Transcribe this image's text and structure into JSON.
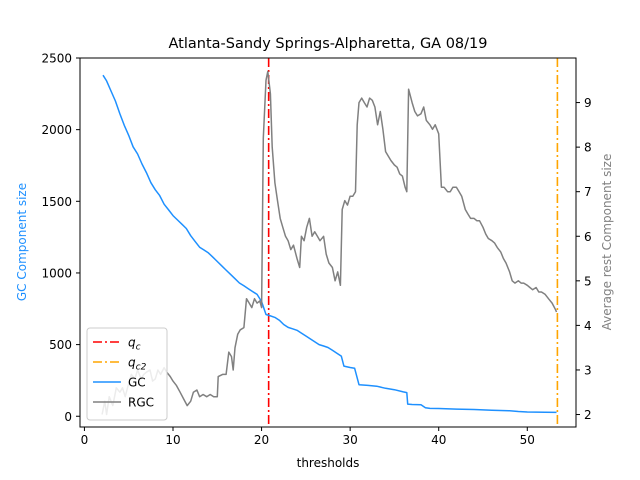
{
  "chart_data": {
    "type": "line",
    "title": "Atlanta-Sandy Springs-Alpharetta, GA 08/19",
    "xlabel": "thresholds",
    "ylabel_left": "GC Component size",
    "ylabel_right": "Average rest Component size",
    "xlim": [
      -0.5,
      55.5
    ],
    "ylim_left": [
      -75,
      2500
    ],
    "ylim_right": [
      1.72,
      10.0
    ],
    "x_ticks": [
      0,
      10,
      20,
      30,
      40,
      50
    ],
    "y_ticks_left": [
      0,
      500,
      1000,
      1500,
      2000,
      2500
    ],
    "y_ticks_right": [
      2,
      3,
      4,
      5,
      6,
      7,
      8,
      9
    ],
    "legend_position": "lower left",
    "colors": {
      "gc": "#1e90ff",
      "rgc": "#808080",
      "qc": "#ff0000",
      "qc2": "#ffa500",
      "left_label": "#1e90ff",
      "right_label": "#808080"
    },
    "vlines": [
      {
        "name": "q_c",
        "x": 20.8,
        "color": "#ff0000"
      },
      {
        "name": "q_c2",
        "x": 53.4,
        "color": "#ffa500"
      }
    ],
    "legend": [
      {
        "key": "qc",
        "label": "q",
        "sub": "c",
        "style": "dashdot",
        "color": "#ff0000"
      },
      {
        "key": "qc2",
        "label": "q",
        "sub": "c2",
        "style": "dashdot",
        "color": "#ffa500"
      },
      {
        "key": "gc",
        "label": "GC",
        "style": "solid",
        "color": "#1e90ff"
      },
      {
        "key": "rgc",
        "label": "RGC",
        "style": "solid",
        "color": "#808080"
      }
    ],
    "series": [
      {
        "name": "GC",
        "axis": "left",
        "points": [
          [
            2.1,
            2380
          ],
          [
            2.5,
            2340
          ],
          [
            3.0,
            2270
          ],
          [
            3.5,
            2200
          ],
          [
            4.0,
            2110
          ],
          [
            4.5,
            2030
          ],
          [
            5.0,
            1960
          ],
          [
            5.5,
            1880
          ],
          [
            6.0,
            1830
          ],
          [
            6.5,
            1760
          ],
          [
            7.0,
            1700
          ],
          [
            7.5,
            1630
          ],
          [
            8.0,
            1580
          ],
          [
            8.5,
            1540
          ],
          [
            9.0,
            1480
          ],
          [
            9.5,
            1440
          ],
          [
            10.0,
            1400
          ],
          [
            10.5,
            1370
          ],
          [
            11.0,
            1340
          ],
          [
            11.5,
            1310
          ],
          [
            12.0,
            1260
          ],
          [
            12.5,
            1220
          ],
          [
            13.0,
            1180
          ],
          [
            13.5,
            1160
          ],
          [
            14.0,
            1140
          ],
          [
            14.5,
            1110
          ],
          [
            15.0,
            1080
          ],
          [
            15.5,
            1050
          ],
          [
            16.0,
            1020
          ],
          [
            16.5,
            990
          ],
          [
            17.0,
            960
          ],
          [
            17.5,
            930
          ],
          [
            18.0,
            910
          ],
          [
            18.5,
            890
          ],
          [
            19.0,
            870
          ],
          [
            19.5,
            850
          ],
          [
            20.0,
            800
          ],
          [
            20.5,
            710
          ],
          [
            21.0,
            700
          ],
          [
            21.5,
            690
          ],
          [
            22.0,
            670
          ],
          [
            22.5,
            640
          ],
          [
            23.0,
            620
          ],
          [
            23.5,
            610
          ],
          [
            24.0,
            600
          ],
          [
            24.5,
            580
          ],
          [
            25.0,
            560
          ],
          [
            25.5,
            540
          ],
          [
            26.0,
            520
          ],
          [
            26.5,
            500
          ],
          [
            27.0,
            490
          ],
          [
            27.5,
            480
          ],
          [
            28.0,
            460
          ],
          [
            28.5,
            440
          ],
          [
            29.0,
            420
          ],
          [
            29.3,
            350
          ],
          [
            30.0,
            340
          ],
          [
            30.5,
            335
          ],
          [
            31.0,
            220
          ],
          [
            32.0,
            215
          ],
          [
            33.0,
            210
          ],
          [
            34.0,
            195
          ],
          [
            35.0,
            185
          ],
          [
            36.0,
            170
          ],
          [
            36.4,
            165
          ],
          [
            36.5,
            85
          ],
          [
            37.0,
            82
          ],
          [
            38.0,
            80
          ],
          [
            38.5,
            60
          ],
          [
            39.0,
            55
          ],
          [
            40.0,
            54
          ],
          [
            42.0,
            50
          ],
          [
            44.0,
            47
          ],
          [
            46.0,
            42
          ],
          [
            48.0,
            38
          ],
          [
            49.0,
            33
          ],
          [
            50.0,
            30
          ],
          [
            52.0,
            28
          ],
          [
            53.3,
            27
          ]
        ]
      },
      {
        "name": "RGC",
        "axis": "right",
        "points": [
          [
            2.0,
            2.0
          ],
          [
            2.3,
            2.3
          ],
          [
            2.5,
            2.0
          ],
          [
            2.8,
            2.4
          ],
          [
            3.2,
            2.2
          ],
          [
            3.6,
            2.6
          ],
          [
            4.0,
            2.5
          ],
          [
            4.3,
            2.6
          ],
          [
            4.6,
            2.4
          ],
          [
            5.0,
            2.7
          ],
          [
            5.3,
            2.9
          ],
          [
            5.7,
            2.8
          ],
          [
            6.0,
            3.0
          ],
          [
            6.4,
            2.8
          ],
          [
            6.7,
            2.9
          ],
          [
            7.0,
            2.95
          ],
          [
            7.4,
            3.0
          ],
          [
            7.7,
            2.75
          ],
          [
            8.0,
            2.8
          ],
          [
            8.3,
            3.0
          ],
          [
            8.6,
            2.9
          ],
          [
            9.0,
            3.05
          ],
          [
            9.3,
            2.95
          ],
          [
            9.7,
            2.85
          ],
          [
            10.0,
            2.75
          ],
          [
            10.4,
            2.65
          ],
          [
            10.8,
            2.5
          ],
          [
            11.2,
            2.35
          ],
          [
            11.6,
            2.2
          ],
          [
            12.0,
            2.3
          ],
          [
            12.3,
            2.5
          ],
          [
            12.7,
            2.55
          ],
          [
            13.0,
            2.4
          ],
          [
            13.4,
            2.45
          ],
          [
            13.8,
            2.4
          ],
          [
            14.2,
            2.45
          ],
          [
            14.6,
            2.4
          ],
          [
            15.0,
            2.4
          ],
          [
            15.1,
            2.85
          ],
          [
            15.6,
            2.9
          ],
          [
            16.0,
            2.9
          ],
          [
            16.3,
            3.4
          ],
          [
            16.6,
            3.3
          ],
          [
            16.8,
            3.0
          ],
          [
            17.0,
            3.5
          ],
          [
            17.3,
            3.8
          ],
          [
            17.6,
            3.9
          ],
          [
            18.0,
            3.95
          ],
          [
            18.3,
            4.6
          ],
          [
            18.6,
            4.5
          ],
          [
            18.9,
            4.4
          ],
          [
            19.2,
            4.6
          ],
          [
            19.5,
            4.5
          ],
          [
            19.8,
            4.55
          ],
          [
            20.0,
            4.4
          ],
          [
            20.2,
            8.2
          ],
          [
            20.5,
            9.5
          ],
          [
            20.7,
            9.7
          ],
          [
            21.0,
            9.2
          ],
          [
            21.2,
            8.0
          ],
          [
            21.5,
            7.2
          ],
          [
            21.8,
            6.8
          ],
          [
            22.1,
            6.4
          ],
          [
            22.4,
            6.2
          ],
          [
            22.7,
            6.0
          ],
          [
            23.0,
            5.9
          ],
          [
            23.3,
            5.7
          ],
          [
            23.6,
            5.8
          ],
          [
            24.0,
            5.5
          ],
          [
            24.3,
            5.3
          ],
          [
            24.5,
            6.0
          ],
          [
            24.8,
            5.9
          ],
          [
            25.1,
            6.2
          ],
          [
            25.4,
            6.4
          ],
          [
            25.7,
            6.0
          ],
          [
            26.0,
            6.1
          ],
          [
            26.3,
            6.0
          ],
          [
            26.6,
            5.9
          ],
          [
            27.0,
            6.0
          ],
          [
            27.3,
            5.6
          ],
          [
            27.6,
            5.4
          ],
          [
            28.0,
            5.3
          ],
          [
            28.3,
            5.0
          ],
          [
            28.6,
            5.2
          ],
          [
            28.9,
            4.9
          ],
          [
            29.1,
            6.6
          ],
          [
            29.4,
            6.8
          ],
          [
            29.7,
            6.7
          ],
          [
            30.0,
            6.9
          ],
          [
            30.3,
            6.9
          ],
          [
            30.6,
            7.0
          ],
          [
            30.8,
            8.5
          ],
          [
            31.0,
            9.0
          ],
          [
            31.3,
            9.1
          ],
          [
            31.6,
            9.0
          ],
          [
            31.9,
            8.9
          ],
          [
            32.2,
            9.1
          ],
          [
            32.5,
            9.05
          ],
          [
            32.8,
            8.9
          ],
          [
            33.1,
            8.5
          ],
          [
            33.4,
            8.8
          ],
          [
            33.7,
            8.4
          ],
          [
            34.0,
            7.9
          ],
          [
            34.3,
            7.8
          ],
          [
            34.6,
            7.7
          ],
          [
            35.0,
            7.6
          ],
          [
            35.3,
            7.55
          ],
          [
            35.6,
            7.4
          ],
          [
            35.9,
            7.35
          ],
          [
            36.2,
            7.1
          ],
          [
            36.4,
            7.0
          ],
          [
            36.6,
            9.3
          ],
          [
            37.0,
            9.0
          ],
          [
            37.3,
            8.8
          ],
          [
            37.6,
            8.7
          ],
          [
            38.0,
            8.75
          ],
          [
            38.3,
            8.9
          ],
          [
            38.6,
            8.6
          ],
          [
            39.0,
            8.5
          ],
          [
            39.3,
            8.4
          ],
          [
            39.6,
            8.5
          ],
          [
            40.0,
            8.3
          ],
          [
            40.3,
            7.1
          ],
          [
            40.6,
            7.1
          ],
          [
            41.0,
            7.0
          ],
          [
            41.3,
            7.0
          ],
          [
            41.6,
            7.1
          ],
          [
            42.0,
            7.1
          ],
          [
            42.3,
            7.0
          ],
          [
            42.6,
            6.9
          ],
          [
            43.0,
            6.6
          ],
          [
            43.3,
            6.5
          ],
          [
            43.6,
            6.4
          ],
          [
            44.0,
            6.4
          ],
          [
            44.3,
            6.35
          ],
          [
            44.6,
            6.35
          ],
          [
            45.0,
            6.2
          ],
          [
            45.3,
            6.05
          ],
          [
            45.6,
            5.95
          ],
          [
            46.0,
            5.9
          ],
          [
            46.3,
            5.85
          ],
          [
            46.6,
            5.75
          ],
          [
            47.0,
            5.65
          ],
          [
            47.3,
            5.5
          ],
          [
            47.6,
            5.4
          ],
          [
            48.0,
            5.2
          ],
          [
            48.3,
            5.0
          ],
          [
            48.6,
            4.95
          ],
          [
            49.0,
            5.0
          ],
          [
            49.3,
            4.95
          ],
          [
            49.6,
            4.95
          ],
          [
            50.0,
            4.9
          ],
          [
            50.3,
            4.85
          ],
          [
            50.6,
            4.8
          ],
          [
            51.0,
            4.85
          ],
          [
            51.3,
            4.75
          ],
          [
            51.6,
            4.75
          ],
          [
            52.0,
            4.7
          ],
          [
            52.4,
            4.6
          ],
          [
            52.8,
            4.5
          ],
          [
            53.2,
            4.35
          ],
          [
            53.3,
            4.3
          ]
        ]
      }
    ]
  }
}
